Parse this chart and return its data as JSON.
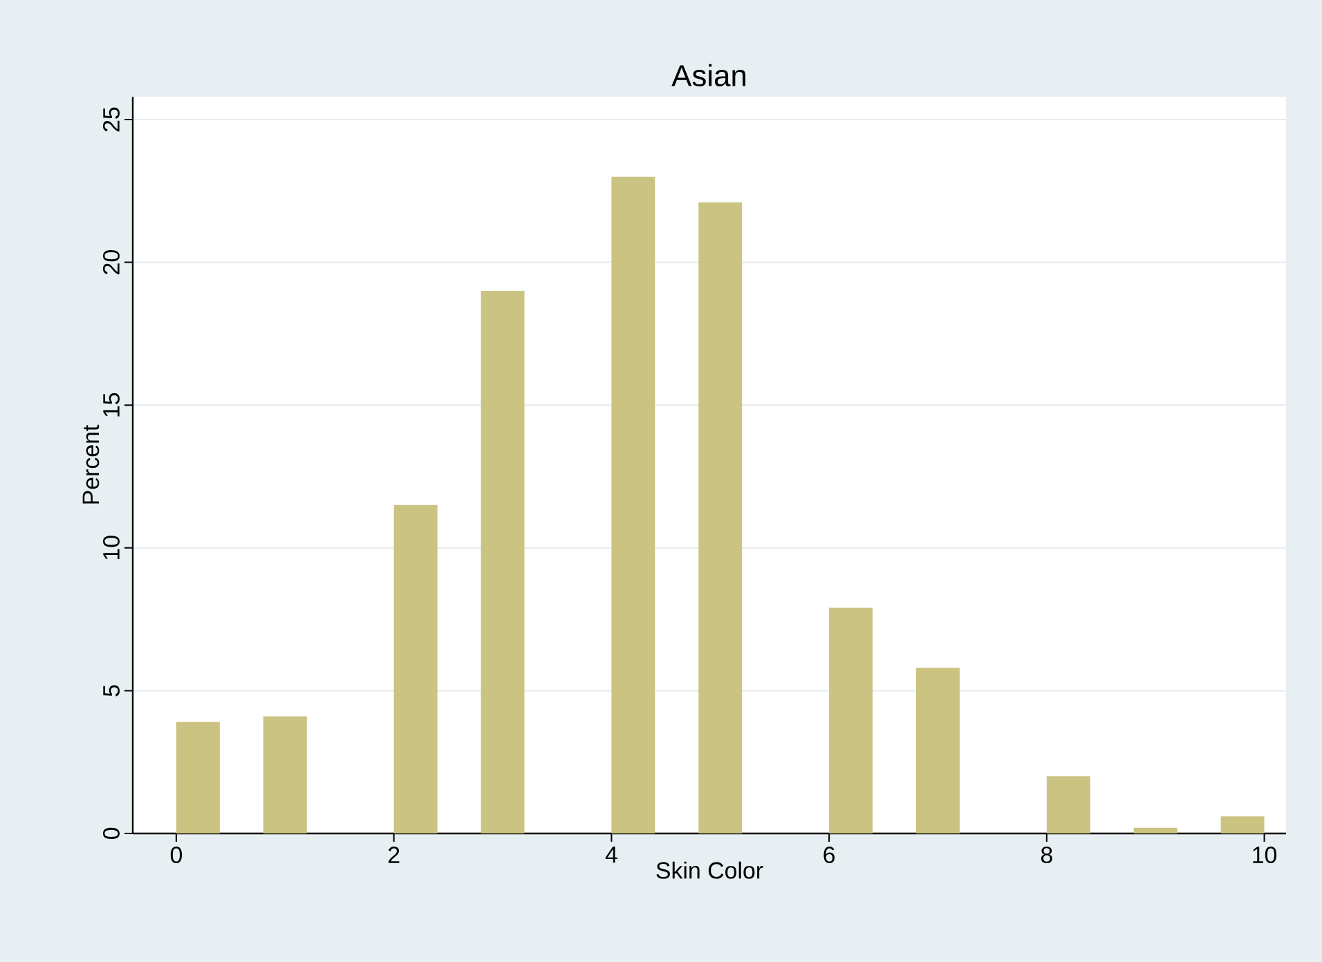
{
  "chart_data": {
    "type": "histogram",
    "title": "Asian",
    "xlabel": "Skin Color",
    "ylabel": "Percent",
    "bins": [
      0,
      0.4,
      0.8,
      1.2,
      1.6,
      2,
      2.4,
      2.8,
      3.2,
      3.6,
      4,
      4.4,
      4.8,
      5.2,
      5.6,
      6,
      6.4,
      6.8,
      7.2,
      7.6,
      8,
      8.4,
      8.8,
      9.2,
      9.6,
      10
    ],
    "values": [
      3.9,
      0,
      4.1,
      0,
      0,
      11.5,
      0,
      19.0,
      0,
      0,
      23.0,
      0,
      22.1,
      0,
      0,
      7.9,
      0,
      5.8,
      0,
      0,
      2.0,
      0,
      0.2,
      0,
      0.6
    ],
    "color": "#cbc382",
    "xlim": [
      -0.4,
      10.2
    ],
    "ylim": [
      0,
      25.8
    ],
    "xticks": [
      0,
      2,
      4,
      6,
      8,
      10
    ],
    "yticks": [
      0,
      5,
      10,
      15,
      20,
      25
    ],
    "grid": "y"
  }
}
